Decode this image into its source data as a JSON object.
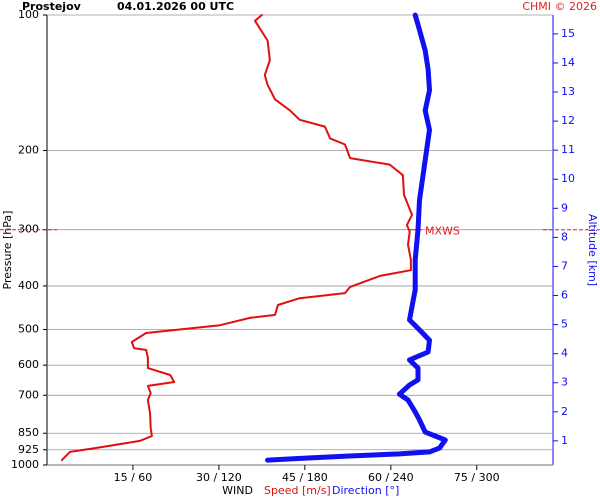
{
  "chart_data": {
    "type": "line",
    "title": "Prostejov",
    "subtitle": "04.01.2026 00 UTC",
    "credit": "CHMI © 2026",
    "xlabel": "WIND",
    "ylabel": "Pressure [hPa]",
    "y2label": "Altitude [km]",
    "xlim": [
      0,
      88.3
    ],
    "x2lim": [
      0,
      353.2
    ],
    "xticks": [
      {
        "value": 15,
        "label": "15 / 60"
      },
      {
        "value": 30,
        "label": "30 / 120"
      },
      {
        "value": 45,
        "label": "45 / 180"
      },
      {
        "value": 60,
        "label": "60 / 240"
      },
      {
        "value": 75,
        "label": "75 / 300"
      }
    ],
    "ylim": [
      1000,
      100
    ],
    "y_log": true,
    "yticks": [
      100,
      200,
      300,
      400,
      500,
      600,
      700,
      850,
      925,
      1000
    ],
    "y2lim": [
      0.17,
      15.65
    ],
    "y2ticks": [
      1,
      2,
      3,
      4,
      5,
      6,
      7,
      8,
      9,
      10,
      11,
      12,
      13,
      14,
      15
    ],
    "grid": true,
    "annotations": [
      {
        "text": "MXWS",
        "y": 300,
        "color": "#e02020"
      }
    ],
    "series": [
      {
        "name": "Speed [m/s]",
        "color": "#e01010",
        "axis": "x",
        "pressure": [
          975,
          935,
          917,
          884,
          862,
          828,
          770,
          717,
          692,
          667,
          654,
          631,
          609,
          578,
          555,
          550,
          533,
          509,
          489,
          471,
          464,
          441,
          426,
          415,
          402,
          380,
          369,
          350,
          324,
          303,
          293,
          278,
          251,
          227,
          215,
          208,
          194,
          188,
          177,
          171,
          163,
          154,
          143,
          136,
          126,
          114,
          103,
          100
        ],
        "values": [
          2.6,
          4.0,
          8.4,
          16.2,
          18.3,
          18.1,
          18.0,
          17.6,
          18.1,
          17.6,
          22.2,
          21.5,
          17.6,
          17.6,
          17.3,
          15.2,
          14.8,
          17.3,
          30.2,
          35.4,
          39.8,
          40.3,
          44.1,
          52.0,
          52.9,
          58.1,
          63.5,
          63.5,
          63.0,
          63.3,
          62.8,
          63.7,
          62.3,
          62.1,
          59.8,
          52.9,
          52.0,
          49.4,
          48.5,
          44.1,
          42.4,
          39.8,
          38.5,
          38.0,
          38.9,
          38.5,
          36.3,
          37.5
        ]
      },
      {
        "name": "Direction [°]",
        "color": "#1010f0",
        "axis": "x2",
        "pressure": [
          975,
          967,
          955,
          945,
          935,
          917,
          880,
          862,
          845,
          794,
          762,
          717,
          696,
          664,
          647,
          609,
          584,
          561,
          528,
          501,
          476,
          441,
          408,
          350,
          300,
          258,
          210,
          180,
          163,
          147,
          132,
          120,
          108,
          100
        ],
        "values": [
          154,
          177,
          211,
          246,
          267,
          274,
          278,
          271,
          264,
          260,
          257,
          252,
          246,
          253,
          259,
          259,
          253,
          266,
          267,
          260,
          253,
          255,
          257,
          257,
          259,
          260,
          264,
          267,
          264,
          267,
          266,
          264,
          260,
          257
        ]
      }
    ]
  }
}
